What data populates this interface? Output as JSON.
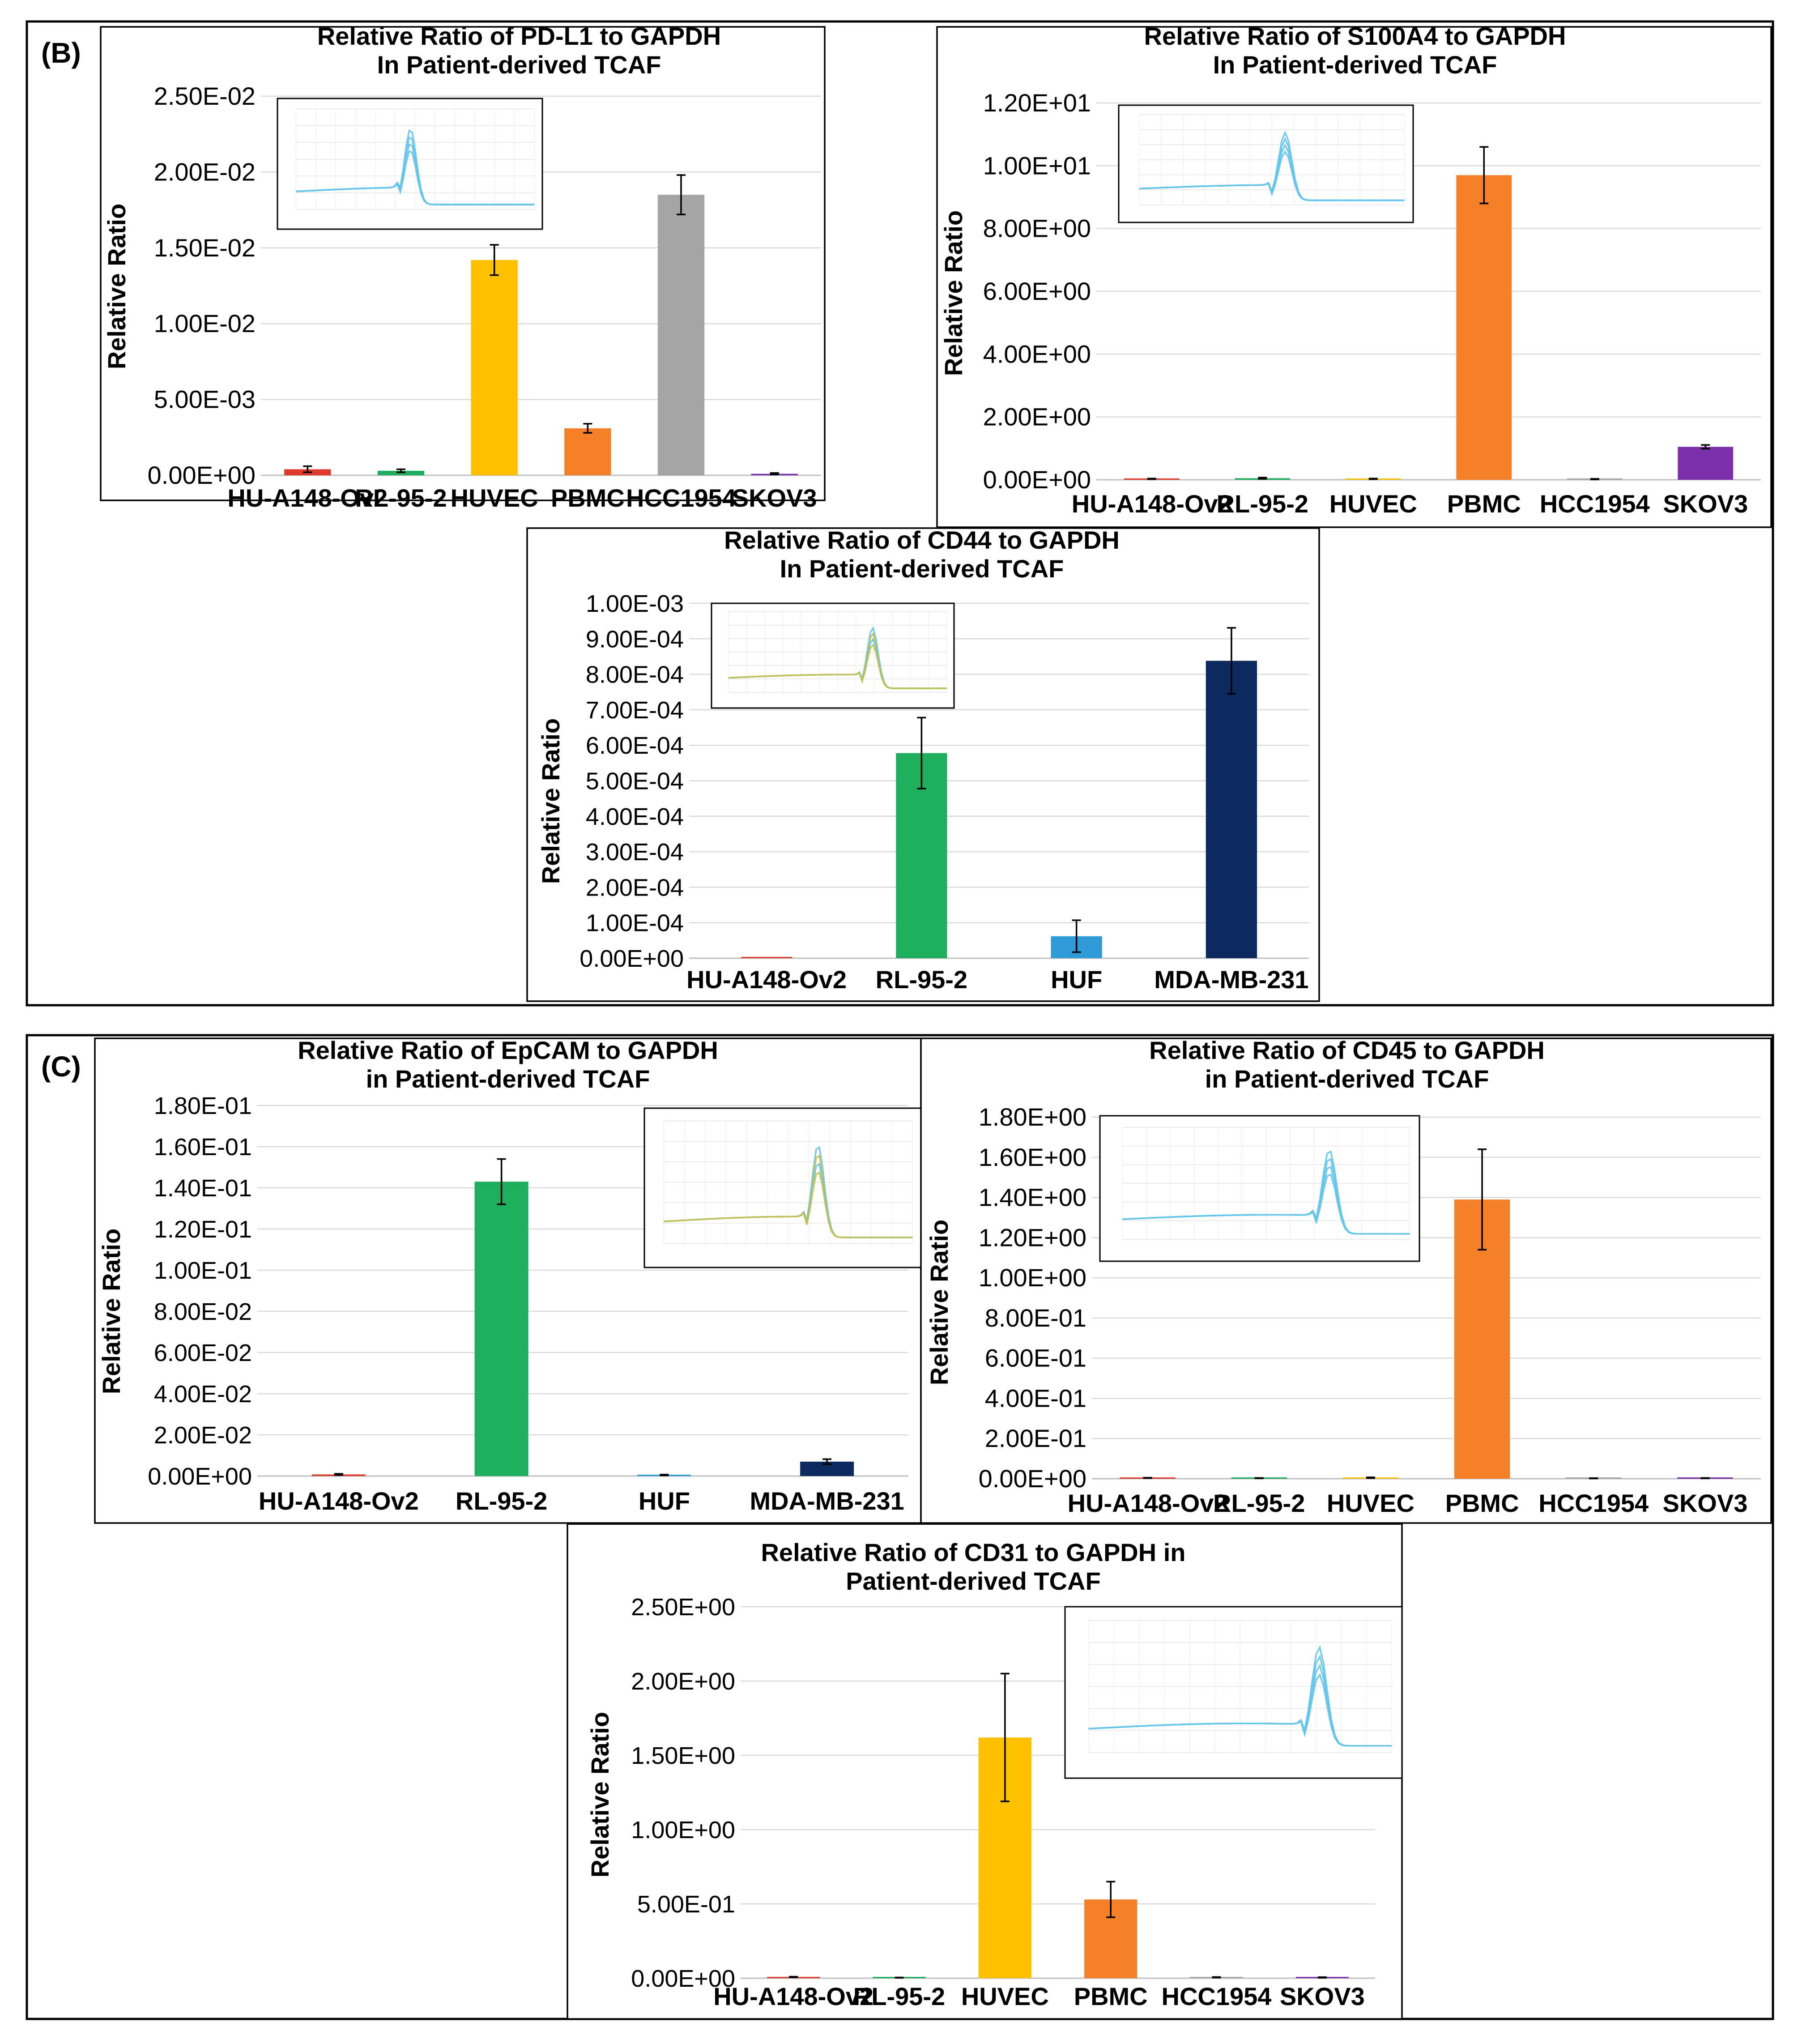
{
  "panel_labels": {
    "b": "(B)",
    "c": "(C)"
  },
  "colors": {
    "HU-A148-Ov2": "#e03a2f",
    "RL-95-2": "#1fad5e",
    "HUVEC": "#ffc000",
    "PBMC": "#f5802a",
    "HCC1954": "#a5a5a5",
    "SKOV3": "#7b2fa8",
    "HUF": "#2e9bd6",
    "MDA-MB-231": "#0d2a5e",
    "inset_line": "#64c4ea",
    "inset_line_alt": "#c9c048"
  },
  "inset_icon": "melt-curve-inset",
  "chart_data": [
    {
      "id": "pdl1",
      "type": "bar",
      "title_line1": "Relative Ratio of PD-L1 to GAPDH",
      "title_line2": "In Patient-derived TCAF",
      "ylabel": "Relative Ratio",
      "xlabel": "",
      "categories": [
        "HU-A148-Ov2",
        "RL-95-2",
        "HUVEC",
        "PBMC",
        "HCC1954",
        "SKOV3"
      ],
      "values": [
        0.0004,
        0.0003,
        0.0142,
        0.0031,
        0.0185,
        0.0001
      ],
      "errors": [
        0.0002,
        0.0001,
        0.001,
        0.0003,
        0.0013,
        5e-05
      ],
      "ylim": [
        0,
        0.025
      ],
      "yticks": [
        0,
        0.005,
        0.01,
        0.015,
        0.02,
        0.025
      ],
      "ytick_labels": [
        "0.00E+00",
        "5.00E-03",
        "1.00E-02",
        "1.50E-02",
        "2.00E-02",
        "2.50E-02"
      ],
      "grid": true,
      "inset": "melt curve (single peak, blue traces)"
    },
    {
      "id": "s100a4",
      "type": "bar",
      "title_line1": "Relative Ratio of S100A4 to GAPDH",
      "title_line2": "In Patient-derived TCAF",
      "ylabel": "Relative Ratio",
      "xlabel": "",
      "categories": [
        "HU-A148-Ov2",
        "RL-95-2",
        "HUVEC",
        "PBMC",
        "HCC1954",
        "SKOV3"
      ],
      "values": [
        0.03,
        0.05,
        0.03,
        9.7,
        0.02,
        1.05
      ],
      "errors": [
        0.01,
        0.02,
        0.01,
        0.9,
        0.01,
        0.06
      ],
      "ylim": [
        0,
        12
      ],
      "yticks": [
        0,
        2,
        4,
        6,
        8,
        10,
        12
      ],
      "ytick_labels": [
        "0.00E+00",
        "2.00E+00",
        "4.00E+00",
        "6.00E+00",
        "8.00E+00",
        "1.00E+01",
        "1.20E+01"
      ],
      "grid": true,
      "inset": "melt curve (single peak, blue traces)"
    },
    {
      "id": "cd44",
      "type": "bar",
      "title_line1": "Relative Ratio of CD44 to GAPDH",
      "title_line2": "In Patient-derived TCAF",
      "ylabel": "Relative Ratio",
      "xlabel": "",
      "categories": [
        "HU-A148-Ov2",
        "RL-95-2",
        "HUF",
        "MDA-MB-231"
      ],
      "values": [
        1e-06,
        0.000578,
        6.2e-05,
        0.000838
      ],
      "errors": [
        0,
        0.0001,
        4.5e-05,
        9.3e-05
      ],
      "ylim": [
        0,
        0.001
      ],
      "yticks": [
        0,
        0.0001,
        0.0002,
        0.0003,
        0.0004,
        0.0005,
        0.0006,
        0.0007,
        0.0008,
        0.0009,
        0.001
      ],
      "ytick_labels": [
        "0.00E+00",
        "1.00E-04",
        "2.00E-04",
        "3.00E-04",
        "4.00E-04",
        "5.00E-04",
        "6.00E-04",
        "7.00E-04",
        "8.00E-04",
        "9.00E-04",
        "1.00E-03"
      ],
      "grid": true,
      "inset": "melt curve (single peak, blue and yellow traces)"
    },
    {
      "id": "epcam",
      "type": "bar",
      "title_line1": "Relative Ratio of EpCAM to GAPDH",
      "title_line2": "in Patient-derived TCAF",
      "ylabel": "Relative Ratio",
      "xlabel": "",
      "categories": [
        "HU-A148-Ov2",
        "RL-95-2",
        "HUF",
        "MDA-MB-231"
      ],
      "values": [
        0.0008,
        0.143,
        0.0005,
        0.007
      ],
      "errors": [
        0.0003,
        0.011,
        0.0002,
        0.0012
      ],
      "ylim": [
        0,
        0.18
      ],
      "yticks": [
        0,
        0.02,
        0.04,
        0.06,
        0.08,
        0.1,
        0.12,
        0.14,
        0.16,
        0.18
      ],
      "ytick_labels": [
        "0.00E+00",
        "2.00E-02",
        "4.00E-02",
        "6.00E-02",
        "8.00E-02",
        "1.00E-01",
        "1.20E-01",
        "1.40E-01",
        "1.60E-01",
        "1.80E-01"
      ],
      "grid": true,
      "inset": "melt curve (single peak, blue and yellow traces)"
    },
    {
      "id": "cd45",
      "type": "bar",
      "title_line1": "Relative Ratio of CD45 to GAPDH",
      "title_line2": "in Patient-derived TCAF",
      "ylabel": "Relative Ratio",
      "xlabel": "",
      "categories": [
        "HU-A148-Ov2",
        "RL-95-2",
        "HUVEC",
        "PBMC",
        "HCC1954",
        "SKOV3"
      ],
      "values": [
        0.004,
        0.003,
        0.005,
        1.39,
        0.002,
        0.003
      ],
      "errors": [
        0.001,
        0.001,
        0.002,
        0.25,
        0.001,
        0.001
      ],
      "ylim": [
        0,
        1.8
      ],
      "yticks": [
        0,
        0.2,
        0.4,
        0.6,
        0.8,
        1.0,
        1.2,
        1.4,
        1.6,
        1.8
      ],
      "ytick_labels": [
        "0.00E+00",
        "2.00E-01",
        "4.00E-01",
        "6.00E-01",
        "8.00E-01",
        "1.00E+00",
        "1.20E+00",
        "1.40E+00",
        "1.60E+00",
        "1.80E+00"
      ],
      "grid": true,
      "inset": "melt curve (single peak, blue trace)"
    },
    {
      "id": "cd31",
      "type": "bar",
      "title_line1": "Relative Ratio of CD31 to GAPDH in",
      "title_line2": "Patient-derived TCAF",
      "ylabel": "Relative Ratio",
      "xlabel": "",
      "categories": [
        "HU-A148-Ov2",
        "RL-95-2",
        "HUVEC",
        "PBMC",
        "HCC1954",
        "SKOV3"
      ],
      "values": [
        0.008,
        0.004,
        1.62,
        0.53,
        0.006,
        0.005
      ],
      "errors": [
        0.002,
        0.001,
        0.43,
        0.12,
        0.002,
        0.002
      ],
      "ylim": [
        0,
        2.5
      ],
      "yticks": [
        0,
        0.5,
        1.0,
        1.5,
        2.0,
        2.5
      ],
      "ytick_labels": [
        "0.00E+00",
        "5.00E-01",
        "1.00E+00",
        "1.50E+00",
        "2.00E+00",
        "2.50E+00"
      ],
      "grid": true,
      "inset": "melt curve (single peak, blue traces)"
    }
  ]
}
